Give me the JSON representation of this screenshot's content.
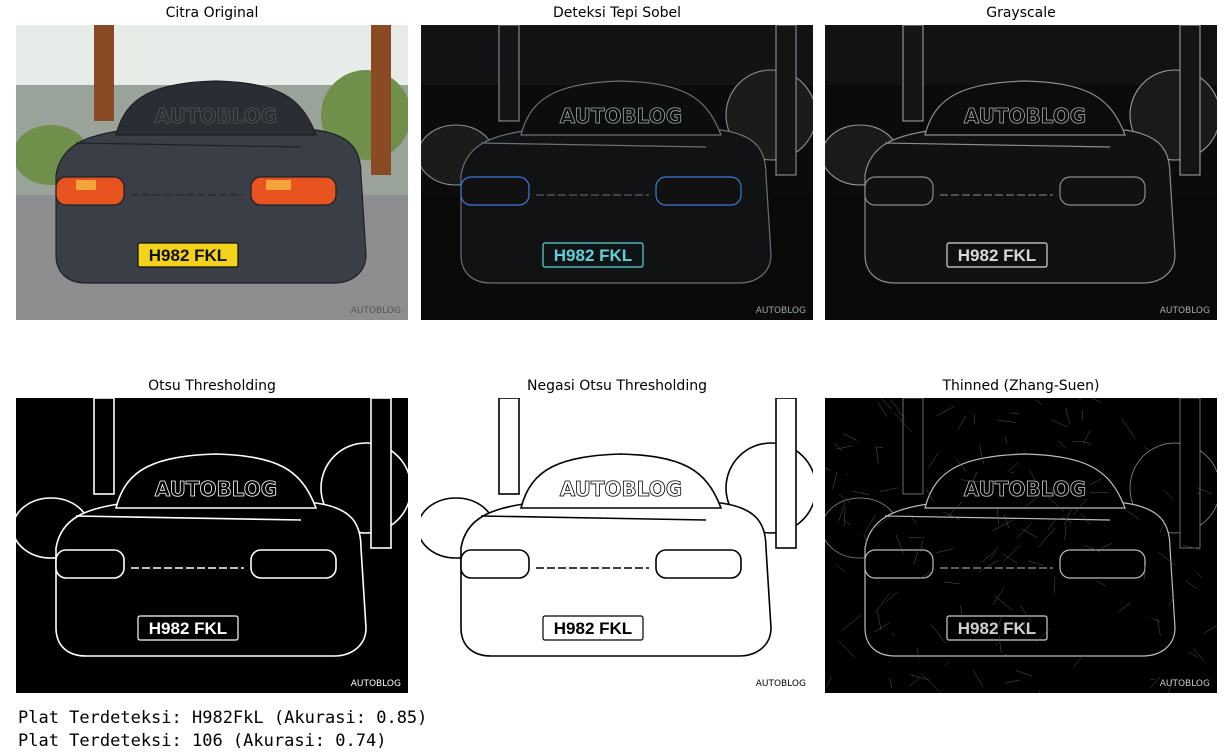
{
  "panels": [
    {
      "title": "Citra Original",
      "mode": "original",
      "plate_text": "H982 FKL",
      "logo_text": "AUTOBLOG"
    },
    {
      "title": "Deteksi Tepi Sobel",
      "mode": "sobel",
      "plate_text": "H982 FKL",
      "logo_text": "AUTOBLOG"
    },
    {
      "title": "Grayscale",
      "mode": "gray",
      "plate_text": "H982 FKL",
      "logo_text": "AUTOBLOG"
    },
    {
      "title": "Otsu Thresholding",
      "mode": "otsu",
      "plate_text": "H982 FKL",
      "logo_text": "AUTOBLOG"
    },
    {
      "title": "Negasi Otsu Thresholding",
      "mode": "negotsu",
      "plate_text": "H982 FKL",
      "logo_text": "AUTOBLOG"
    },
    {
      "title": "Thinned (Zhang-Suen)",
      "mode": "thin",
      "plate_text": "H982 FKL",
      "logo_text": "AUTOBLOG"
    }
  ],
  "output": {
    "line1": "Plat Terdeteksi: H982FkL (Akurasi: 0.85)",
    "line2": "Plat Terdeteksi: 106 (Akurasi: 0.74)"
  }
}
